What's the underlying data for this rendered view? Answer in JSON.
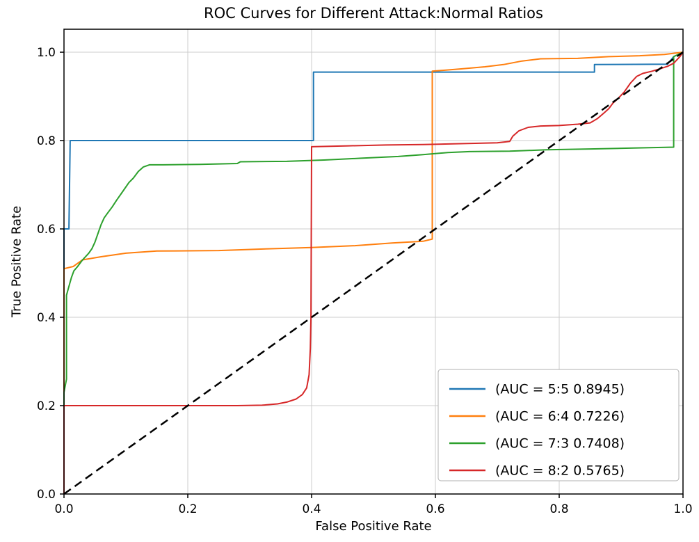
{
  "chart_data": {
    "type": "line",
    "title": "ROC Curves for Different Attack:Normal Ratios",
    "xlabel": "False Positive Rate",
    "ylabel": "True Positive Rate",
    "xlim": [
      0,
      1
    ],
    "ylim": [
      0,
      1.052
    ],
    "xticks": [
      0,
      0.2,
      0.4,
      0.6,
      0.8,
      1.0
    ],
    "yticks": [
      0,
      0.2,
      0.4,
      0.6,
      0.8,
      1.0
    ],
    "grid": true,
    "grid_color": "#cccccc",
    "legend_position": "lower right",
    "series": [
      {
        "id": "ratio-5-5",
        "name": "(AUC = 5:5 0.8945)",
        "ratio": "5:5",
        "auc": 0.8945,
        "color": "#1f77b4",
        "width": 2,
        "legend": true,
        "points": [
          [
            0,
            0
          ],
          [
            0,
            0.6
          ],
          [
            0.008,
            0.6
          ],
          [
            0.01,
            0.8
          ],
          [
            0.403,
            0.8
          ],
          [
            0.403,
            0.955
          ],
          [
            0.857,
            0.955
          ],
          [
            0.857,
            0.972
          ],
          [
            0.975,
            0.973
          ],
          [
            0.985,
            0.99
          ],
          [
            1,
            1
          ]
        ]
      },
      {
        "id": "ratio-6-4",
        "name": "(AUC = 6:4 0.7226)",
        "ratio": "6:4",
        "auc": 0.7226,
        "color": "#ff7f0e",
        "width": 2,
        "legend": true,
        "points": [
          [
            0,
            0
          ],
          [
            0,
            0.51
          ],
          [
            0.015,
            0.515
          ],
          [
            0.03,
            0.53
          ],
          [
            0.06,
            0.537
          ],
          [
            0.1,
            0.545
          ],
          [
            0.15,
            0.55
          ],
          [
            0.25,
            0.551
          ],
          [
            0.33,
            0.555
          ],
          [
            0.4,
            0.558
          ],
          [
            0.47,
            0.562
          ],
          [
            0.53,
            0.568
          ],
          [
            0.58,
            0.572
          ],
          [
            0.595,
            0.577
          ],
          [
            0.595,
            0.957
          ],
          [
            0.64,
            0.962
          ],
          [
            0.68,
            0.967
          ],
          [
            0.71,
            0.972
          ],
          [
            0.74,
            0.98
          ],
          [
            0.77,
            0.985
          ],
          [
            0.83,
            0.986
          ],
          [
            0.88,
            0.99
          ],
          [
            0.93,
            0.992
          ],
          [
            0.97,
            0.995
          ],
          [
            1,
            1
          ]
        ]
      },
      {
        "id": "ratio-7-3",
        "name": "(AUC = 7:3 0.7408)",
        "ratio": "7:3",
        "auc": 0.7408,
        "color": "#2ca02c",
        "width": 2,
        "legend": true,
        "points": [
          [
            0,
            0
          ],
          [
            0,
            0.23
          ],
          [
            0.004,
            0.26
          ],
          [
            0.004,
            0.45
          ],
          [
            0.008,
            0.47
          ],
          [
            0.012,
            0.49
          ],
          [
            0.016,
            0.505
          ],
          [
            0.022,
            0.515
          ],
          [
            0.03,
            0.53
          ],
          [
            0.04,
            0.545
          ],
          [
            0.045,
            0.555
          ],
          [
            0.05,
            0.57
          ],
          [
            0.055,
            0.59
          ],
          [
            0.06,
            0.61
          ],
          [
            0.065,
            0.625
          ],
          [
            0.07,
            0.635
          ],
          [
            0.078,
            0.65
          ],
          [
            0.085,
            0.665
          ],
          [
            0.095,
            0.685
          ],
          [
            0.105,
            0.705
          ],
          [
            0.112,
            0.715
          ],
          [
            0.12,
            0.73
          ],
          [
            0.128,
            0.74
          ],
          [
            0.138,
            0.745
          ],
          [
            0.16,
            0.745
          ],
          [
            0.22,
            0.746
          ],
          [
            0.28,
            0.748
          ],
          [
            0.285,
            0.752
          ],
          [
            0.36,
            0.753
          ],
          [
            0.42,
            0.756
          ],
          [
            0.48,
            0.76
          ],
          [
            0.54,
            0.764
          ],
          [
            0.58,
            0.768
          ],
          [
            0.62,
            0.773
          ],
          [
            0.655,
            0.775
          ],
          [
            0.72,
            0.776
          ],
          [
            0.78,
            0.779
          ],
          [
            0.85,
            0.781
          ],
          [
            0.92,
            0.783
          ],
          [
            0.985,
            0.785
          ],
          [
            0.985,
            0.99
          ],
          [
            1,
            1
          ]
        ]
      },
      {
        "id": "ratio-8-2",
        "name": "(AUC = 8:2 0.5765)",
        "ratio": "8:2",
        "auc": 0.5765,
        "color": "#d62728",
        "width": 2,
        "legend": true,
        "points": [
          [
            0,
            0
          ],
          [
            0,
            0.2
          ],
          [
            0.28,
            0.2
          ],
          [
            0.32,
            0.201
          ],
          [
            0.345,
            0.204
          ],
          [
            0.36,
            0.208
          ],
          [
            0.375,
            0.215
          ],
          [
            0.385,
            0.225
          ],
          [
            0.392,
            0.24
          ],
          [
            0.396,
            0.27
          ],
          [
            0.398,
            0.33
          ],
          [
            0.399,
            0.4
          ],
          [
            0.4,
            0.786
          ],
          [
            0.46,
            0.788
          ],
          [
            0.52,
            0.79
          ],
          [
            0.58,
            0.791
          ],
          [
            0.64,
            0.793
          ],
          [
            0.7,
            0.795
          ],
          [
            0.72,
            0.798
          ],
          [
            0.725,
            0.81
          ],
          [
            0.735,
            0.822
          ],
          [
            0.75,
            0.83
          ],
          [
            0.77,
            0.833
          ],
          [
            0.8,
            0.834
          ],
          [
            0.83,
            0.837
          ],
          [
            0.85,
            0.84
          ],
          [
            0.862,
            0.85
          ],
          [
            0.872,
            0.862
          ],
          [
            0.88,
            0.872
          ],
          [
            0.887,
            0.885
          ],
          [
            0.895,
            0.895
          ],
          [
            0.905,
            0.91
          ],
          [
            0.915,
            0.93
          ],
          [
            0.925,
            0.945
          ],
          [
            0.935,
            0.952
          ],
          [
            0.95,
            0.957
          ],
          [
            0.962,
            0.962
          ],
          [
            0.975,
            0.968
          ],
          [
            0.985,
            0.975
          ],
          [
            0.995,
            0.99
          ],
          [
            1,
            1
          ]
        ]
      },
      {
        "id": "chance-diagonal",
        "name": "chance",
        "color": "#000000",
        "width": 2.5,
        "dash": "12,7",
        "legend": false,
        "points": [
          [
            0,
            0
          ],
          [
            1,
            1
          ]
        ]
      }
    ]
  }
}
